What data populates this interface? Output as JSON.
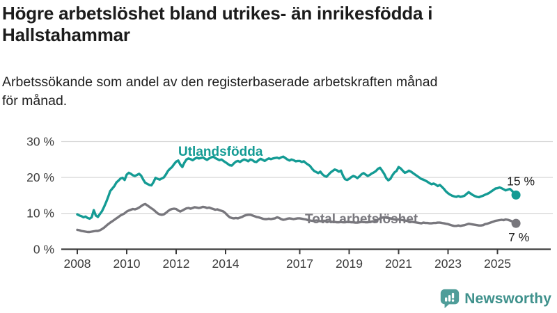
{
  "header": {
    "title_line1": "Högre arbetslöshet bland utrikes- än inrikesfödda i",
    "title_line2": "Hallstahammar",
    "subtitle_line1": "Arbetssökande som andel av den registerbaserade arbetskraften månad",
    "subtitle_line2": "för månad."
  },
  "branding": {
    "logo_text": "Newsworthy",
    "logo_color": "#4f9d99"
  },
  "chart_data": {
    "type": "line",
    "title": "Högre arbetslöshet bland utrikes- än inrikesfödda i Hallstahammar",
    "subtitle": "Arbetssökande som andel av den registerbaserade arbetskraften månad för månad.",
    "x_start": "2008-01",
    "x_end": "2025-10",
    "frequency": "monthly",
    "grid": "horizontal",
    "ylim": [
      0,
      30
    ],
    "y_ticks": [
      {
        "value": 0,
        "label": "0 %"
      },
      {
        "value": 10,
        "label": "10 %"
      },
      {
        "value": 20,
        "label": "20 %"
      },
      {
        "value": 30,
        "label": "30 %"
      }
    ],
    "x_tick_years": [
      2008,
      2010,
      2012,
      2014,
      2017,
      2019,
      2021,
      2023,
      2025
    ],
    "series": [
      {
        "name": "Utlandsfödda",
        "color": "#149b94",
        "end_label": "15 %",
        "values": [
          9.7,
          9.4,
          9.2,
          8.9,
          9.1,
          8.7,
          8.5,
          8.9,
          10.9,
          9.4,
          9.0,
          9.8,
          10.6,
          11.8,
          13.1,
          14.6,
          16.2,
          16.9,
          17.6,
          18.6,
          19.1,
          19.7,
          19.9,
          19.3,
          20.8,
          21.3,
          21.0,
          20.6,
          20.4,
          20.7,
          21.0,
          20.5,
          19.4,
          18.5,
          18.2,
          17.9,
          17.8,
          18.7,
          19.9,
          19.6,
          19.4,
          19.7,
          20.0,
          20.8,
          21.8,
          22.4,
          22.9,
          23.7,
          24.4,
          24.7,
          23.6,
          22.9,
          24.1,
          25.0,
          25.3,
          25.1,
          24.8,
          25.2,
          25.5,
          25.3,
          25.4,
          25.6,
          25.2,
          24.9,
          25.3,
          25.6,
          25.8,
          25.4,
          25.1,
          24.8,
          25.0,
          24.6,
          24.2,
          23.8,
          23.4,
          23.3,
          23.9,
          24.4,
          24.6,
          24.3,
          24.7,
          25.0,
          24.8,
          24.5,
          25.0,
          24.8,
          24.4,
          24.3,
          24.8,
          25.2,
          24.9,
          24.6,
          25.0,
          25.3,
          25.1,
          25.3,
          25.4,
          25.5,
          25.3,
          25.6,
          25.8,
          25.4,
          25.0,
          24.7,
          25.0,
          24.8,
          24.5,
          24.6,
          24.6,
          24.3,
          24.5,
          24.0,
          23.6,
          23.2,
          22.4,
          21.8,
          21.5,
          21.2,
          21.6,
          20.9,
          20.4,
          20.2,
          20.8,
          21.4,
          21.8,
          22.2,
          22.0,
          21.6,
          21.9,
          20.5,
          19.5,
          19.3,
          19.6,
          20.1,
          20.4,
          20.2,
          19.8,
          20.3,
          20.9,
          21.2,
          20.8,
          20.4,
          20.7,
          21.1,
          21.4,
          21.8,
          22.4,
          22.7,
          21.9,
          21.0,
          19.8,
          19.2,
          19.6,
          20.6,
          21.4,
          21.8,
          22.9,
          22.5,
          21.9,
          21.3,
          21.5,
          21.9,
          21.6,
          21.2,
          20.8,
          20.4,
          20.0,
          19.6,
          19.4,
          19.1,
          18.8,
          18.4,
          18.1,
          18.3,
          18.0,
          17.6,
          17.9,
          17.4,
          16.8,
          16.1,
          15.6,
          15.2,
          14.9,
          14.7,
          14.6,
          14.8,
          14.6,
          14.7,
          14.9,
          15.4,
          15.9,
          15.5,
          15.1,
          14.8,
          14.6,
          14.5,
          14.7,
          14.9,
          15.2,
          15.4,
          15.7,
          16.1,
          16.5,
          16.9,
          17.0,
          17.2,
          17.0,
          16.7,
          16.4,
          16.6,
          16.8,
          16.3,
          15.7,
          15.1
        ]
      },
      {
        "name": "Total arbetslöshet",
        "color": "#78777d",
        "end_label": "7 %",
        "values": [
          5.4,
          5.3,
          5.1,
          5.0,
          4.9,
          4.8,
          4.8,
          4.9,
          5.0,
          5.1,
          5.1,
          5.3,
          5.6,
          6.0,
          6.5,
          7.0,
          7.4,
          7.8,
          8.2,
          8.6,
          9.0,
          9.4,
          9.7,
          10.0,
          10.5,
          10.8,
          11.0,
          11.2,
          11.1,
          11.3,
          11.6,
          12.0,
          12.4,
          12.6,
          12.2,
          11.8,
          11.4,
          11.0,
          10.5,
          10.0,
          9.7,
          9.6,
          9.7,
          10.1,
          10.6,
          11.0,
          11.2,
          11.3,
          11.2,
          10.8,
          10.5,
          10.8,
          11.1,
          11.4,
          11.5,
          11.3,
          11.5,
          11.7,
          11.6,
          11.5,
          11.6,
          11.8,
          11.7,
          11.5,
          11.6,
          11.4,
          11.2,
          11.0,
          11.1,
          10.9,
          10.7,
          10.5,
          10.0,
          9.4,
          8.9,
          8.7,
          8.6,
          8.7,
          8.6,
          8.8,
          9.0,
          9.3,
          9.5,
          9.6,
          9.6,
          9.4,
          9.2,
          9.0,
          8.9,
          8.7,
          8.5,
          8.4,
          8.4,
          8.5,
          8.4,
          8.5,
          8.6,
          8.9,
          8.7,
          8.4,
          8.2,
          8.3,
          8.5,
          8.6,
          8.5,
          8.4,
          8.5,
          8.6,
          8.6,
          8.5,
          8.4,
          8.3,
          8.1,
          8.0,
          7.9,
          7.9,
          8.0,
          7.9,
          7.8,
          7.9,
          7.9,
          7.8,
          7.8,
          7.7,
          7.6,
          7.6,
          7.5,
          7.5,
          7.6,
          7.5,
          7.5,
          7.6,
          7.6,
          7.5,
          7.5,
          7.4,
          7.4,
          7.5,
          7.6,
          7.6,
          7.5,
          7.5,
          7.6,
          7.7,
          7.8,
          7.9,
          8.3,
          8.6,
          8.8,
          8.9,
          8.8,
          8.7,
          8.6,
          8.4,
          8.3,
          8.3,
          8.3,
          8.2,
          8.1,
          8.0,
          7.9,
          7.8,
          7.7,
          7.6,
          7.5,
          7.4,
          7.3,
          7.2,
          7.4,
          7.3,
          7.3,
          7.2,
          7.2,
          7.3,
          7.3,
          7.4,
          7.4,
          7.3,
          7.2,
          7.1,
          7.0,
          6.8,
          6.6,
          6.5,
          6.5,
          6.6,
          6.5,
          6.6,
          6.7,
          6.9,
          7.1,
          7.0,
          6.9,
          6.8,
          6.7,
          6.6,
          6.6,
          6.7,
          7.0,
          7.1,
          7.3,
          7.5,
          7.7,
          7.9,
          8.0,
          8.1,
          8.2,
          8.1,
          8.3,
          8.2,
          8.0,
          7.8,
          7.5,
          7.2
        ]
      }
    ],
    "colors": {
      "grid": "#d8d8d8",
      "axis": "#3b3b3b",
      "axis_text": "#3d3d3d",
      "value_label_text": "#1a1a1a"
    }
  }
}
